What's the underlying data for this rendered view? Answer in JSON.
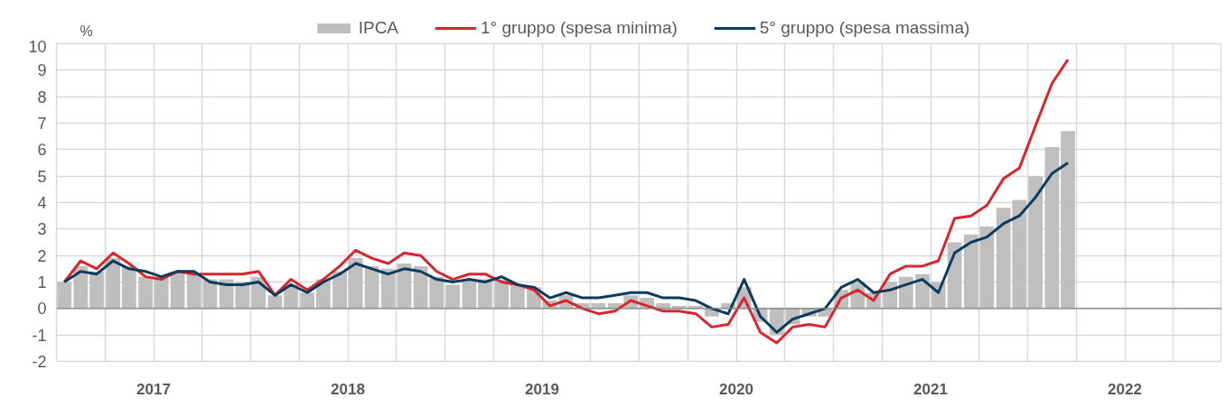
{
  "chart_data": {
    "type": "bar",
    "ylabel": "%",
    "x": [
      "2017-01-16",
      "2017-02-15",
      "2017-03-16",
      "2017-04-16",
      "2017-05-16",
      "2017-06-16",
      "2017-07-16",
      "2017-08-16",
      "2017-09-16",
      "2017-10-16",
      "2017-11-16",
      "2017-12-16",
      "2018-01-16",
      "2018-02-15",
      "2018-03-16",
      "2018-04-16",
      "2018-05-16",
      "2018-06-16",
      "2018-07-16",
      "2018-08-16",
      "2018-09-16",
      "2018-10-16",
      "2018-11-16",
      "2018-12-16",
      "2019-01-16",
      "2019-02-15",
      "2019-03-16",
      "2019-04-16",
      "2019-05-16",
      "2019-06-16",
      "2019-07-16",
      "2019-08-16",
      "2019-09-16",
      "2019-10-16",
      "2019-11-16",
      "2019-12-16",
      "2020-01-16",
      "2020-02-15",
      "2020-03-16",
      "2020-04-16",
      "2020-05-16",
      "2020-06-16",
      "2020-07-16",
      "2020-08-16",
      "2020-09-16",
      "2020-10-16",
      "2020-11-16",
      "2020-12-16",
      "2021-01-16",
      "2021-02-15",
      "2021-03-16",
      "2021-04-16",
      "2021-05-16",
      "2021-06-16",
      "2021-07-16",
      "2021-08-16",
      "2021-09-16",
      "2021-10-16",
      "2021-11-16",
      "2021-12-16",
      "2022-01-16",
      "2022-02-15",
      "2022-03-16"
    ],
    "series": [
      {
        "name": "IPCA",
        "color": "#bfbfbf",
        "values": [
          1.0,
          1.6,
          1.4,
          1.9,
          1.6,
          1.2,
          1.2,
          1.4,
          1.3,
          1.1,
          1.1,
          1.0,
          1.2,
          0.5,
          0.9,
          0.6,
          1.1,
          1.4,
          1.9,
          1.6,
          1.5,
          1.7,
          1.6,
          1.2,
          0.9,
          1.1,
          1.1,
          1.1,
          0.9,
          0.8,
          0.3,
          0.5,
          0.2,
          0.2,
          0.2,
          0.5,
          0.4,
          0.2,
          0.1,
          0.1,
          -0.3,
          0.2,
          0.8,
          -0.5,
          -1.0,
          -0.6,
          -0.3,
          -0.3,
          0.7,
          1.0,
          0.6,
          1.0,
          1.2,
          1.3,
          1.0,
          2.5,
          2.8,
          3.1,
          3.8,
          4.1,
          5.0,
          6.1,
          6.7
        ]
      },
      {
        "name": "1° gruppo (spesa minima)",
        "type": "line",
        "color": "#d7262f",
        "values": [
          1.0,
          1.8,
          1.5,
          2.1,
          1.7,
          1.2,
          1.1,
          1.4,
          1.3,
          1.3,
          1.3,
          1.3,
          1.4,
          0.5,
          1.1,
          0.7,
          1.1,
          1.6,
          2.2,
          1.9,
          1.7,
          2.1,
          2.0,
          1.4,
          1.1,
          1.3,
          1.3,
          1.0,
          0.9,
          0.7,
          0.1,
          0.3,
          0.0,
          -0.2,
          -0.1,
          0.3,
          0.1,
          -0.1,
          -0.1,
          -0.2,
          -0.7,
          -0.6,
          0.4,
          -0.9,
          -1.3,
          -0.7,
          -0.6,
          -0.7,
          0.4,
          0.7,
          0.3,
          1.3,
          1.6,
          1.6,
          1.8,
          3.4,
          3.5,
          3.9,
          4.9,
          5.3,
          6.9,
          8.5,
          9.4
        ]
      },
      {
        "name": "5° gruppo (spesa massima)",
        "type": "line",
        "color": "#0d3b5c",
        "values": [
          1.0,
          1.4,
          1.3,
          1.8,
          1.5,
          1.4,
          1.2,
          1.4,
          1.4,
          1.0,
          0.9,
          0.9,
          1.0,
          0.5,
          0.9,
          0.6,
          1.0,
          1.3,
          1.7,
          1.5,
          1.3,
          1.5,
          1.4,
          1.1,
          1.0,
          1.1,
          1.0,
          1.2,
          0.9,
          0.8,
          0.4,
          0.6,
          0.4,
          0.4,
          0.5,
          0.6,
          0.6,
          0.4,
          0.4,
          0.3,
          0.0,
          -0.2,
          1.1,
          -0.3,
          -0.9,
          -0.4,
          -0.2,
          0.0,
          0.8,
          1.1,
          0.6,
          0.7,
          0.9,
          1.1,
          0.6,
          2.1,
          2.5,
          2.7,
          3.2,
          3.5,
          4.2,
          5.1,
          5.5
        ]
      }
    ],
    "xlim": [
      "2017-01",
      "2023-01"
    ],
    "xticks": [
      {
        "value": "2017-04",
        "label": null
      },
      {
        "value": "2017-07",
        "label": "2017"
      },
      {
        "value": "2017-10",
        "label": null
      },
      {
        "value": "2018-01",
        "label": null
      },
      {
        "value": "2018-04",
        "label": null
      },
      {
        "value": "2018-07",
        "label": "2018"
      },
      {
        "value": "2018-10",
        "label": null
      },
      {
        "value": "2019-01",
        "label": null
      },
      {
        "value": "2019-04",
        "label": null
      },
      {
        "value": "2019-07",
        "label": "2019"
      },
      {
        "value": "2019-10",
        "label": null
      },
      {
        "value": "2020-01",
        "label": null
      },
      {
        "value": "2020-04",
        "label": null
      },
      {
        "value": "2020-07",
        "label": "2020"
      },
      {
        "value": "2020-10",
        "label": null
      },
      {
        "value": "2021-01",
        "label": null
      },
      {
        "value": "2021-04",
        "label": null
      },
      {
        "value": "2021-07",
        "label": "2021"
      },
      {
        "value": "2021-10",
        "label": null
      },
      {
        "value": "2022-01",
        "label": null
      },
      {
        "value": "2022-04",
        "label": null
      },
      {
        "value": "2022-07",
        "label": "2022"
      },
      {
        "value": "2022-10",
        "label": null
      }
    ],
    "ylim": [
      -2,
      10
    ],
    "yticks": [
      -2,
      -1,
      0,
      1,
      2,
      3,
      4,
      5,
      6,
      7,
      8,
      9,
      10
    ],
    "grid": true,
    "legend": "top"
  }
}
